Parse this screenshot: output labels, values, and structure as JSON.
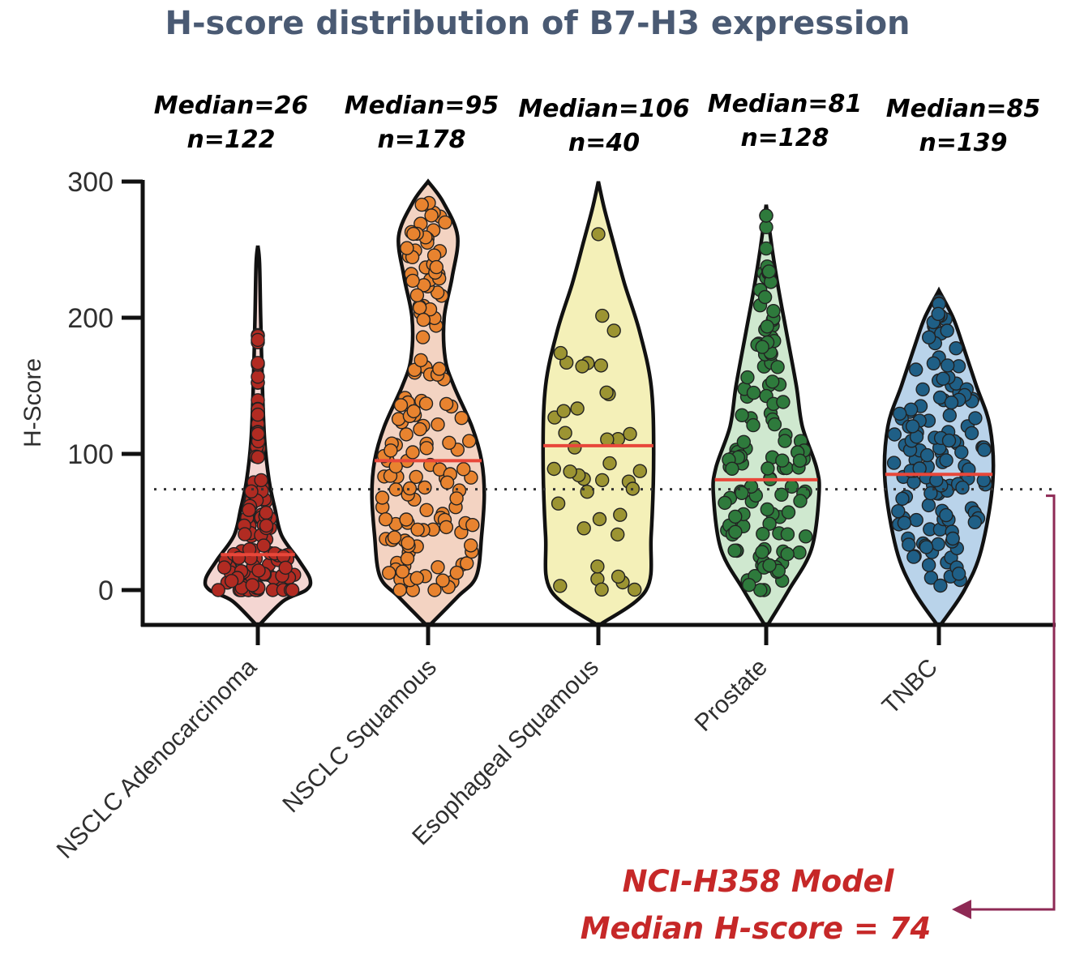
{
  "chart_data": {
    "type": "violin",
    "title": "H-score distribution of B7-H3 expression",
    "ylabel": "H-Score",
    "xlabel": "",
    "ylim": [
      -25,
      300
    ],
    "yticks": [
      "0",
      "100",
      "200",
      "300"
    ],
    "reference_line": {
      "value": 74,
      "style": "dotted"
    },
    "categories": [
      "NSCLC Adenocarcinoma",
      "NSCLC Squamous",
      "Esophageal Squamous",
      "Prostate",
      "TNBC"
    ],
    "series": [
      {
        "category": "NSCLC Adenocarcinoma",
        "median": 26,
        "n": 122,
        "median_label": "Median=26",
        "n_label": "n=122",
        "max": 253,
        "fill": "#f4d6d2",
        "point": "#b12b22"
      },
      {
        "category": "NSCLC Squamous",
        "median": 95,
        "n": 178,
        "median_label": "Median=95",
        "n_label": "n=178",
        "max": 300,
        "fill": "#f3d3c2",
        "point": "#e8832f"
      },
      {
        "category": "Esophageal Squamous",
        "median": 106,
        "n": 40,
        "median_label": "Median=106",
        "n_label": "n=40",
        "max": 300,
        "fill": "#f4f0b8",
        "point": "#9c9432"
      },
      {
        "category": "Prostate",
        "median": 81,
        "n": 128,
        "median_label": "Median=81",
        "n_label": "n=128",
        "max": 283,
        "fill": "#cfe8cf",
        "point": "#2e7a3c"
      },
      {
        "category": "TNBC",
        "median": 85,
        "n": 139,
        "median_label": "Median=85",
        "n_label": "n=139",
        "max": 220,
        "fill": "#b9d3ea",
        "point": "#1f5f86"
      }
    ],
    "colors": {
      "median_line": "#e8473a",
      "annotation": "#c62828",
      "bracket": "#8e2a55"
    }
  },
  "annotation": {
    "line1": "NCI-H358 Model",
    "line2": "Median H-score = 74"
  }
}
